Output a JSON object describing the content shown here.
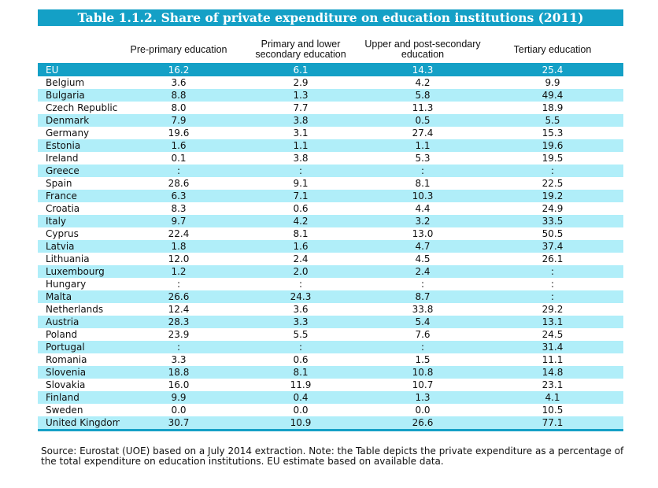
{
  "title": "Table 1.1.2. Share of private expenditure on education institutions (2011)",
  "headers": [
    "",
    "Pre-primary education",
    "Primary and lower secondary education",
    "Upper and post-secondary education",
    "Tertiary education"
  ],
  "eu": {
    "name": "EU",
    "values": [
      "16.2",
      "6.1",
      "14.3",
      "25.4"
    ]
  },
  "rows": [
    {
      "name": "Belgium",
      "values": [
        "3.6",
        "2.9",
        "4.2",
        "9.9"
      ]
    },
    {
      "name": "Bulgaria",
      "values": [
        "8.8",
        "1.3",
        "5.8",
        "49.4"
      ]
    },
    {
      "name": "Czech Republic",
      "values": [
        "8.0",
        "7.7",
        "11.3",
        "18.9"
      ]
    },
    {
      "name": "Denmark",
      "values": [
        "7.9",
        "3.8",
        "0.5",
        "5.5"
      ]
    },
    {
      "name": "Germany",
      "values": [
        "19.6",
        "3.1",
        "27.4",
        "15.3"
      ]
    },
    {
      "name": "Estonia",
      "values": [
        "1.6",
        "1.1",
        "1.1",
        "19.6"
      ]
    },
    {
      "name": "Ireland",
      "values": [
        "0.1",
        "3.8",
        "5.3",
        "19.5"
      ]
    },
    {
      "name": "Greece",
      "values": [
        ":",
        ":",
        ":",
        ":"
      ]
    },
    {
      "name": "Spain",
      "values": [
        "28.6",
        "9.1",
        "8.1",
        "22.5"
      ]
    },
    {
      "name": "France",
      "values": [
        "6.3",
        "7.1",
        "10.3",
        "19.2"
      ]
    },
    {
      "name": "Croatia",
      "values": [
        "8.3",
        "0.6",
        "4.4",
        "24.9"
      ]
    },
    {
      "name": "Italy",
      "values": [
        "9.7",
        "4.2",
        "3.2",
        "33.5"
      ]
    },
    {
      "name": "Cyprus",
      "values": [
        "22.4",
        "8.1",
        "13.0",
        "50.5"
      ]
    },
    {
      "name": "Latvia",
      "values": [
        "1.8",
        "1.6",
        "4.7",
        "37.4"
      ]
    },
    {
      "name": "Lithuania",
      "values": [
        "12.0",
        "2.4",
        "4.5",
        "26.1"
      ]
    },
    {
      "name": "Luxembourg",
      "values": [
        "1.2",
        "2.0",
        "2.4",
        ":"
      ]
    },
    {
      "name": "Hungary",
      "values": [
        ":",
        ":",
        ":",
        ":"
      ]
    },
    {
      "name": "Malta",
      "values": [
        "26.6",
        "24.3",
        "8.7",
        ":"
      ]
    },
    {
      "name": "Netherlands",
      "values": [
        "12.4",
        "3.6",
        "33.8",
        "29.2"
      ]
    },
    {
      "name": "Austria",
      "values": [
        "28.3",
        "3.3",
        "5.4",
        "13.1"
      ]
    },
    {
      "name": "Poland",
      "values": [
        "23.9",
        "5.5",
        "7.6",
        "24.5"
      ]
    },
    {
      "name": "Portugal",
      "values": [
        ":",
        ":",
        ":",
        "31.4"
      ]
    },
    {
      "name": "Romania",
      "values": [
        "3.3",
        "0.6",
        "1.5",
        "11.1"
      ]
    },
    {
      "name": "Slovenia",
      "values": [
        "18.8",
        "8.1",
        "10.8",
        "14.8"
      ]
    },
    {
      "name": "Slovakia",
      "values": [
        "16.0",
        "11.9",
        "10.7",
        "23.1"
      ]
    },
    {
      "name": "Finland",
      "values": [
        "9.9",
        "0.4",
        "1.3",
        "4.1"
      ]
    },
    {
      "name": "Sweden",
      "values": [
        "0.0",
        "0.0",
        "0.0",
        "10.5"
      ]
    },
    {
      "name": "United Kingdom",
      "values": [
        "30.7",
        "10.9",
        "26.6",
        "77.1"
      ]
    }
  ],
  "source": "Source: Eurostat (UOE) based on a July 2014 extraction. Note: the Table depicts the private expenditure as a percentage of the total expenditure on education institutions. EU estimate based on available data.",
  "colors": {
    "accent": "#14a0c6",
    "row_shade": "#b0eef9"
  }
}
